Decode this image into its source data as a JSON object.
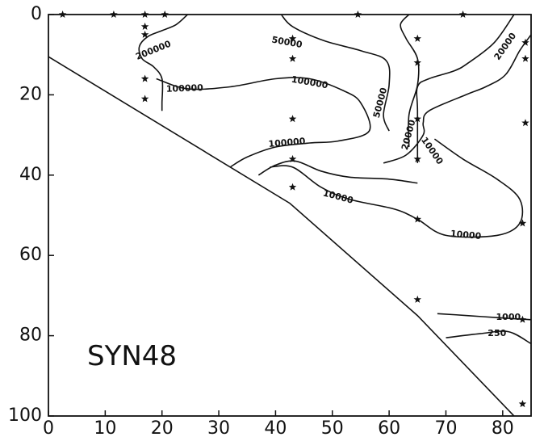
{
  "chart_data": {
    "type": "contour",
    "title": "",
    "xlabel": "",
    "ylabel": "",
    "annotation": "SYN48",
    "xlim": [
      0,
      85
    ],
    "ylim": [
      100,
      0
    ],
    "y_inverted": true,
    "grid": false,
    "x_ticks": [
      "0",
      "10",
      "20",
      "30",
      "40",
      "50",
      "60",
      "70",
      "80"
    ],
    "y_ticks": [
      "0",
      "20",
      "40",
      "60",
      "80",
      "100"
    ],
    "bottom_boundary": [
      [
        0,
        10.5
      ],
      [
        42.5,
        47
      ],
      [
        65,
        75
      ],
      [
        82,
        100
      ]
    ],
    "stations": [
      [
        2.5,
        0
      ],
      [
        11.5,
        0
      ],
      [
        17,
        0
      ],
      [
        20.5,
        0
      ],
      [
        54.5,
        0
      ],
      [
        73,
        0
      ],
      [
        17,
        3
      ],
      [
        17,
        5
      ],
      [
        17,
        16
      ],
      [
        17,
        21
      ],
      [
        43,
        6
      ],
      [
        43,
        11
      ],
      [
        43,
        26
      ],
      [
        43,
        36
      ],
      [
        43,
        43
      ],
      [
        65,
        6
      ],
      [
        65,
        12
      ],
      [
        65,
        26
      ],
      [
        65,
        36
      ],
      [
        65,
        51
      ],
      [
        65,
        71
      ],
      [
        84,
        7
      ],
      [
        84,
        11
      ],
      [
        84,
        27
      ],
      [
        83.5,
        52
      ],
      [
        83.5,
        76
      ],
      [
        83.5,
        97
      ]
    ],
    "contours": [
      {
        "level": "200000",
        "points": [
          [
            24.5,
            0
          ],
          [
            22.5,
            2.5
          ],
          [
            20,
            4
          ],
          [
            17.5,
            5.5
          ],
          [
            16,
            8
          ],
          [
            16.5,
            11
          ],
          [
            18.5,
            13
          ],
          [
            20,
            16
          ],
          [
            20,
            22
          ],
          [
            20,
            24
          ]
        ]
      },
      {
        "level": "100000",
        "points": [
          [
            19,
            16
          ],
          [
            24.5,
            18.5
          ],
          [
            32,
            18
          ],
          [
            40,
            16
          ],
          [
            46,
            16
          ],
          [
            52,
            19
          ],
          [
            55,
            22
          ],
          [
            56.5,
            29
          ],
          [
            51,
            31.5
          ],
          [
            46,
            32
          ],
          [
            40,
            33
          ],
          [
            35,
            35.5
          ],
          [
            32,
            38
          ]
        ]
      },
      {
        "level": "100000",
        "points": [
          [
            37,
            40
          ],
          [
            40,
            37.5
          ],
          [
            43.5,
            36.5
          ],
          [
            48,
            39
          ],
          [
            53,
            40.5
          ],
          [
            60,
            41
          ],
          [
            65,
            42
          ]
        ]
      },
      {
        "level": "50000",
        "points": [
          [
            41,
            0
          ],
          [
            43,
            3
          ],
          [
            48.5,
            6.5
          ],
          [
            55,
            9
          ],
          [
            59.5,
            11.5
          ],
          [
            60,
            17.5
          ],
          [
            59,
            25
          ],
          [
            60,
            29
          ]
        ]
      },
      {
        "level": "50000",
        "points": [
          [
            63.5,
            0
          ],
          [
            62,
            2.5
          ],
          [
            63,
            6
          ],
          [
            65,
            11
          ],
          [
            65,
            17.5
          ],
          [
            63.5,
            25
          ],
          [
            63.5,
            33
          ]
        ]
      },
      {
        "level": "20000",
        "points": [
          [
            85,
            5
          ],
          [
            83,
            9
          ],
          [
            80.5,
            15
          ],
          [
            77,
            18
          ],
          [
            73.5,
            20
          ],
          [
            67,
            24
          ],
          [
            66,
            27
          ],
          [
            66,
            30
          ],
          [
            63,
            35
          ],
          [
            59,
            37
          ]
        ]
      },
      {
        "level": "20000",
        "points": [
          [
            82,
            0
          ],
          [
            78.5,
            7
          ],
          [
            74,
            12
          ],
          [
            71.5,
            14
          ],
          [
            67,
            16
          ],
          [
            65,
            18
          ],
          [
            65,
            24
          ],
          [
            65,
            37
          ]
        ]
      },
      {
        "level": "10000",
        "points": [
          [
            68,
            31
          ],
          [
            73,
            36
          ],
          [
            79,
            41
          ],
          [
            83,
            46
          ],
          [
            83,
            52
          ],
          [
            79,
            55
          ],
          [
            70,
            55
          ],
          [
            65,
            51
          ],
          [
            61,
            48.5
          ],
          [
            53,
            46
          ],
          [
            48,
            43
          ],
          [
            43,
            38
          ],
          [
            39,
            38
          ]
        ]
      },
      {
        "level": "1000",
        "points": [
          [
            68.5,
            74.5
          ],
          [
            74,
            75
          ],
          [
            79,
            75.5
          ],
          [
            85,
            76
          ]
        ]
      },
      {
        "level": "250",
        "points": [
          [
            70,
            80.5
          ],
          [
            76,
            79.5
          ],
          [
            81,
            79
          ],
          [
            85,
            82
          ]
        ]
      }
    ],
    "contour_labels": [
      {
        "text": "200000",
        "x": 18.5,
        "y": 9,
        "angle": -22
      },
      {
        "text": "100000",
        "x": 24,
        "y": 18.5,
        "angle": -2
      },
      {
        "text": "100000",
        "x": 46,
        "y": 17,
        "angle": 10
      },
      {
        "text": "100000",
        "x": 42,
        "y": 32,
        "angle": -5
      },
      {
        "text": "50000",
        "x": 42,
        "y": 7,
        "angle": 10
      },
      {
        "text": "50000",
        "x": 58.5,
        "y": 22,
        "angle": -75
      },
      {
        "text": "20000",
        "x": 63.5,
        "y": 30,
        "angle": -75
      },
      {
        "text": "20000",
        "x": 80.5,
        "y": 8,
        "angle": -55
      },
      {
        "text": "10000",
        "x": 67.5,
        "y": 34,
        "angle": 55
      },
      {
        "text": "10000",
        "x": 51,
        "y": 45.5,
        "angle": 15
      },
      {
        "text": "10000",
        "x": 73.5,
        "y": 55,
        "angle": 5
      },
      {
        "text": "1000",
        "x": 81,
        "y": 75.5,
        "angle": 0
      },
      {
        "text": "250",
        "x": 79,
        "y": 79.5,
        "angle": 0
      }
    ]
  }
}
